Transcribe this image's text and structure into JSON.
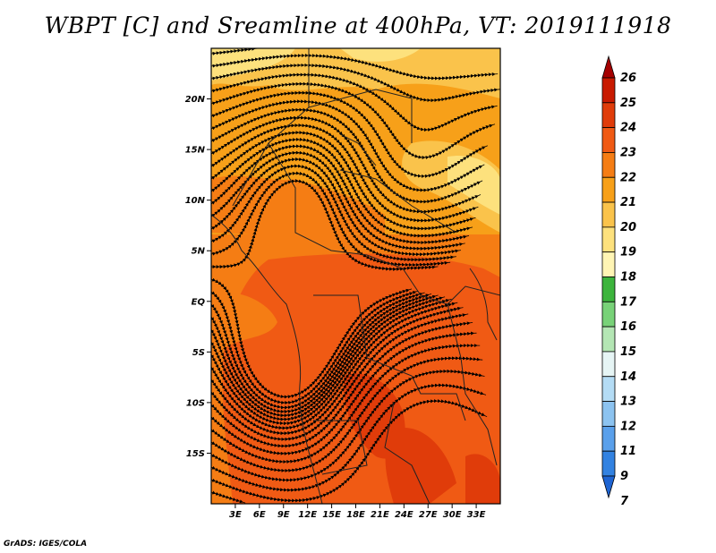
{
  "title": "WBPT [C] and Sreamline at 400hPa, VT: 2019111918",
  "credit": "GrADS: IGES/COLA",
  "map": {
    "lat_range": [
      -20,
      25
    ],
    "lon_range": [
      0,
      36
    ],
    "y_ticks": [
      {
        "lat": 20,
        "label": "20N"
      },
      {
        "lat": 15,
        "label": "15N"
      },
      {
        "lat": 10,
        "label": "10N"
      },
      {
        "lat": 5,
        "label": "5N"
      },
      {
        "lat": 0,
        "label": "EQ"
      },
      {
        "lat": -5,
        "label": "5S"
      },
      {
        "lat": -10,
        "label": "10S"
      },
      {
        "lat": -15,
        "label": "15S"
      }
    ],
    "x_ticks": [
      {
        "lon": 3,
        "label": "3E"
      },
      {
        "lon": 6,
        "label": "6E"
      },
      {
        "lon": 9,
        "label": "9E"
      },
      {
        "lon": 12,
        "label": "12E"
      },
      {
        "lon": 15,
        "label": "15E"
      },
      {
        "lon": 18,
        "label": "18E"
      },
      {
        "lon": 21,
        "label": "21E"
      },
      {
        "lon": 24,
        "label": "24E"
      },
      {
        "lon": 27,
        "label": "27E"
      },
      {
        "lon": 30,
        "label": "30E"
      },
      {
        "lon": 33,
        "label": "33E"
      }
    ]
  },
  "colorbar": {
    "levels": [
      "26",
      "25",
      "24",
      "23",
      "22",
      "21",
      "20",
      "19",
      "18",
      "17",
      "16",
      "15",
      "14",
      "13",
      "12",
      "11",
      "9",
      "7"
    ],
    "colors": [
      "#a50000",
      "#c81a00",
      "#e03c0a",
      "#f05a14",
      "#f57d14",
      "#f7a019",
      "#fac34b",
      "#fde17d",
      "#fff5b4",
      "#3cb43c",
      "#78d278",
      "#b4e6b4",
      "#e6f5f5",
      "#b4dcf5",
      "#8cc3f0",
      "#5aa0eb",
      "#3282e1",
      "#1e64d2"
    ]
  }
}
